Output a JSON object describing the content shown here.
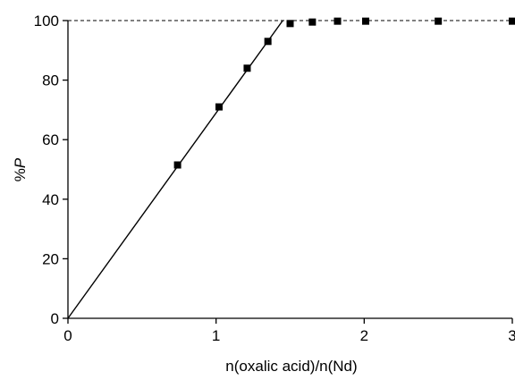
{
  "chart_data": {
    "type": "scatter",
    "xlabel": "n(oxalic acid)/n(Nd)",
    "ylabel_prefix": "%",
    "ylabel_italic": "P",
    "xlim": [
      0,
      3
    ],
    "ylim": [
      0,
      100
    ],
    "xticks": [
      0,
      1,
      2,
      3
    ],
    "xtick_labels": [
      "0",
      "1",
      "2",
      "3"
    ],
    "yticks": [
      0,
      20,
      40,
      60,
      80,
      100
    ],
    "ytick_labels": [
      "0",
      "20",
      "40",
      "60",
      "80",
      "100"
    ],
    "grid": false,
    "legend": "none",
    "points": [
      {
        "x": 0.74,
        "y": 51.5
      },
      {
        "x": 1.02,
        "y": 71
      },
      {
        "x": 1.21,
        "y": 84
      },
      {
        "x": 1.35,
        "y": 93
      },
      {
        "x": 1.5,
        "y": 99
      },
      {
        "x": 1.65,
        "y": 99.5
      },
      {
        "x": 1.82,
        "y": 99.8
      },
      {
        "x": 2.01,
        "y": 99.8
      },
      {
        "x": 2.5,
        "y": 99.8
      },
      {
        "x": 3.0,
        "y": 99.8
      }
    ],
    "fit_line": {
      "x": [
        0,
        1.45
      ],
      "y": [
        0,
        100
      ]
    },
    "reference_line": {
      "y": 100,
      "style": "dashed"
    }
  }
}
